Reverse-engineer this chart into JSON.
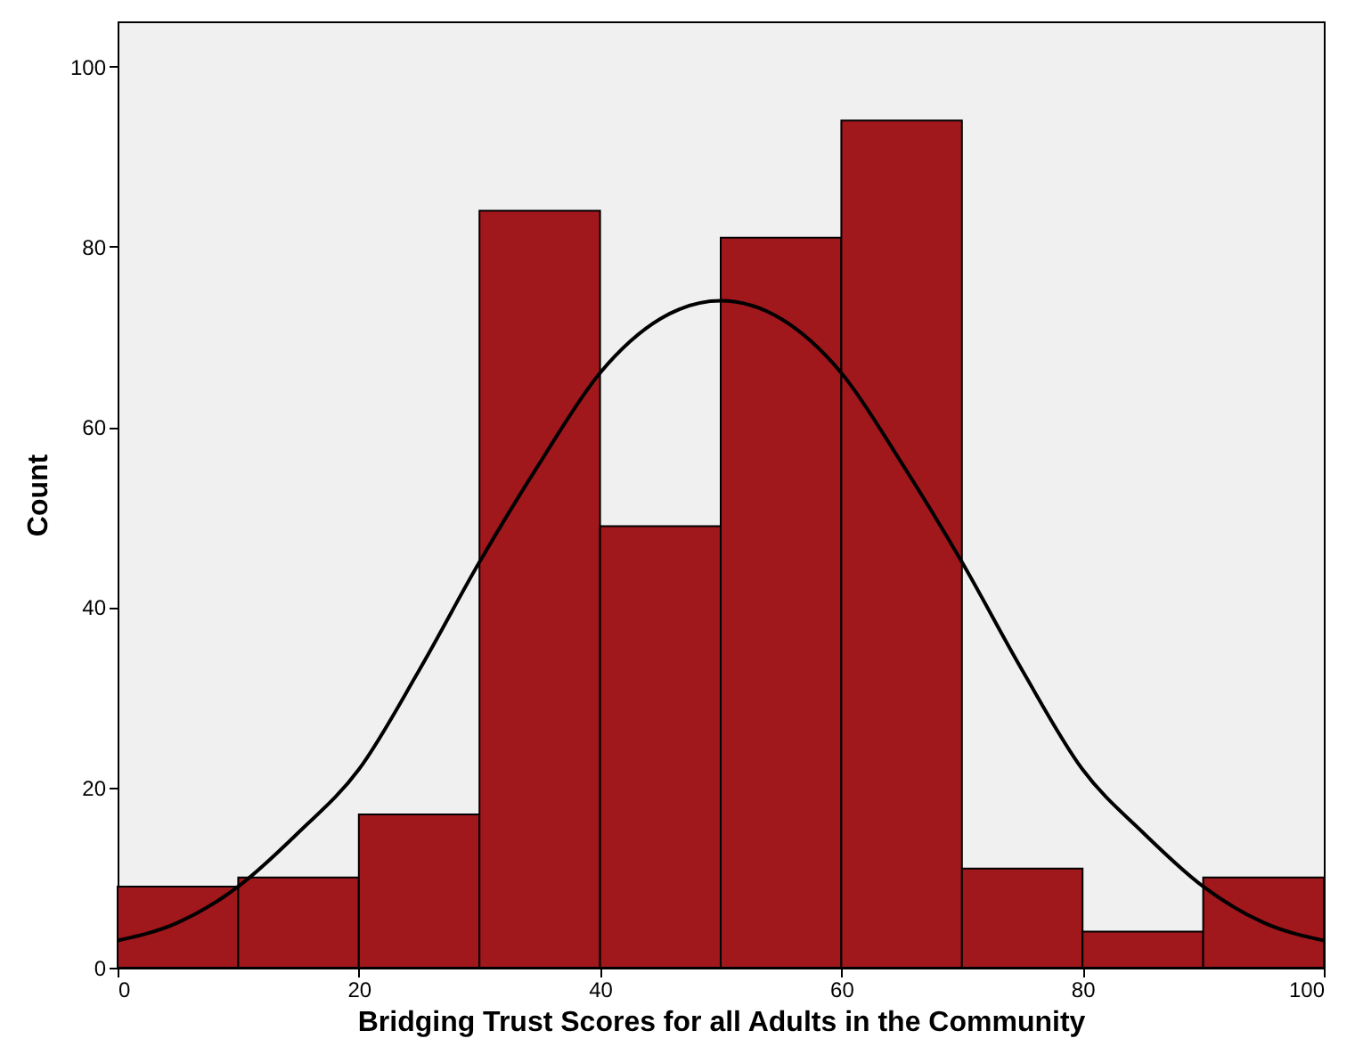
{
  "chart_data": {
    "type": "histogram",
    "xlabel": "Bridging Trust Scores for all Adults in the Community",
    "ylabel": "Count",
    "bins": [
      0,
      10,
      20,
      30,
      40,
      50,
      60,
      70,
      80,
      90,
      100
    ],
    "values": [
      9,
      10,
      17,
      84,
      49,
      81,
      94,
      11,
      4,
      10
    ],
    "color": "#a0171c",
    "series": [
      {
        "type": "line",
        "color": "#000000",
        "x": [
          0,
          5,
          10,
          15,
          20,
          25,
          30,
          35,
          40,
          45,
          50,
          55,
          60,
          65,
          70,
          75,
          80,
          85,
          90,
          95,
          100
        ],
        "values": [
          3,
          5,
          9,
          15,
          22,
          33,
          45,
          56,
          66,
          72,
          74,
          72,
          66,
          56,
          45,
          33,
          22,
          15,
          9,
          5,
          3
        ]
      }
    ],
    "xlim": [
      0,
      100
    ],
    "xticks": [
      0,
      20,
      40,
      60,
      80,
      100
    ],
    "ylim": [
      0,
      105
    ],
    "yticks": [
      0,
      20,
      40,
      60,
      80,
      100
    ],
    "grid": false
  }
}
